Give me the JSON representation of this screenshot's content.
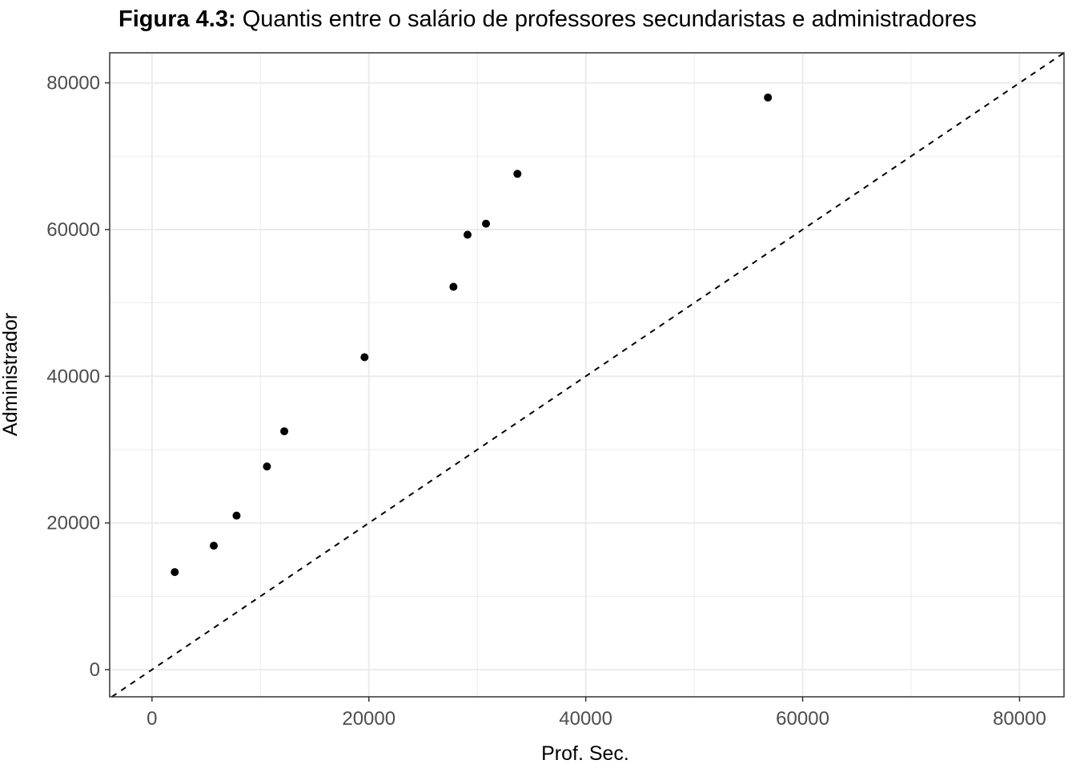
{
  "chart_data": {
    "type": "scatter",
    "title_prefix": "Figura 4.3:",
    "title_text": " Quantis entre o salário de professores secundaristas e administradores",
    "xlabel": "Prof. Sec.",
    "ylabel": "Administrador",
    "xlim": [
      -3900,
      84100
    ],
    "ylim": [
      -3700,
      84100
    ],
    "xticks": [
      0,
      20000,
      40000,
      60000,
      80000
    ],
    "yticks": [
      0,
      20000,
      40000,
      60000,
      80000
    ],
    "xtick_labels": [
      "0",
      "20000",
      "40000",
      "60000",
      "80000"
    ],
    "ytick_labels": [
      "0",
      "20000",
      "40000",
      "60000",
      "80000"
    ],
    "grid": true,
    "reference_line": {
      "type": "identity",
      "style": "dashed",
      "color": "#000000"
    },
    "points": [
      {
        "x": 2100,
        "y": 13300
      },
      {
        "x": 5700,
        "y": 16900
      },
      {
        "x": 7800,
        "y": 21000
      },
      {
        "x": 10600,
        "y": 27700
      },
      {
        "x": 12200,
        "y": 32500
      },
      {
        "x": 19600,
        "y": 42600
      },
      {
        "x": 27800,
        "y": 52200
      },
      {
        "x": 29100,
        "y": 59300
      },
      {
        "x": 30800,
        "y": 60800
      },
      {
        "x": 33700,
        "y": 67600
      },
      {
        "x": 56800,
        "y": 78000
      }
    ],
    "point_color": "#000000",
    "panel_border_color": "#333333",
    "grid_color": "#ebebeb"
  }
}
